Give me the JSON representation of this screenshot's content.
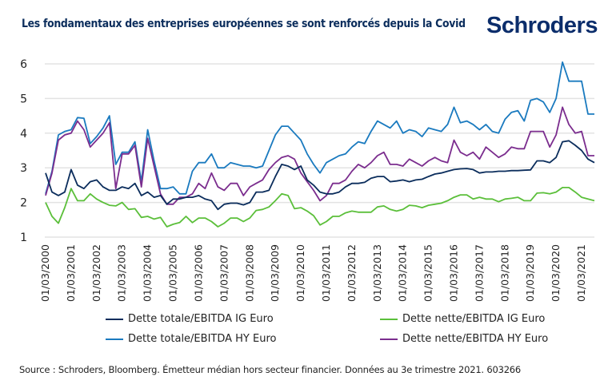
{
  "header": {
    "title": "Les fondamentaux des entreprises européennes se sont renforcés depuis la Covid",
    "logo": "Schroders"
  },
  "footer": {
    "source": "Source : Schroders, Bloomberg. Émetteur médian hors secteur financier. Données au 3e trimestre 2021. 603266"
  },
  "colors": {
    "title": "#0b2d5c",
    "logo": "#0b2d6b",
    "grid": "#e3e3e3"
  },
  "chart_data": {
    "type": "line",
    "title": "Les fondamentaux des entreprises européennes se sont renforcés depuis la Covid",
    "xlabel": "",
    "ylabel": "",
    "ylim": [
      1,
      6
    ],
    "yticks": [
      "1",
      "2",
      "3",
      "4",
      "5",
      "6"
    ],
    "grid": true,
    "legend_position": "bottom",
    "x_frequency": "quarterly",
    "x_start": "2000-03",
    "x_end": "2021-09",
    "xtick_labels": [
      "01/03/2000",
      "01/03/2001",
      "01/03/2002",
      "01/03/2003",
      "01/03/2004",
      "01/03/2005",
      "01/03/2006",
      "01/03/2007",
      "01/03/2008",
      "01/03/2009",
      "01/03/2010",
      "01/03/2011",
      "01/03/2012",
      "01/03/2013",
      "01/03/2014",
      "01/03/2015",
      "01/03/2016",
      "01/03/2017",
      "01/03/2018",
      "01/03/2019",
      "01/03/2020",
      "01/03/2021"
    ],
    "series": [
      {
        "name": "Dette totale/EBITDA HY Euro",
        "color": "#1a7abf",
        "values": [
          2.25,
          2.9,
          3.95,
          4.05,
          4.1,
          4.45,
          4.43,
          3.7,
          3.9,
          4.15,
          4.5,
          3.1,
          3.45,
          3.45,
          3.75,
          2.6,
          4.1,
          3.2,
          2.4,
          2.4,
          2.45,
          2.25,
          2.25,
          2.9,
          3.15,
          3.15,
          3.4,
          3.0,
          3.0,
          3.15,
          3.1,
          3.05,
          3.05,
          3.0,
          3.05,
          3.5,
          3.95,
          4.2,
          4.2,
          4.0,
          3.8,
          3.4,
          3.1,
          2.85,
          3.15,
          3.25,
          3.35,
          3.4,
          3.6,
          3.75,
          3.7,
          4.05,
          4.35,
          4.25,
          4.15,
          4.35,
          4.0,
          4.1,
          4.05,
          3.9,
          4.15,
          4.1,
          4.05,
          4.25,
          4.75,
          4.3,
          4.35,
          4.25,
          4.1,
          4.25,
          4.05,
          4.0,
          4.4,
          4.6,
          4.65,
          4.35,
          4.95,
          5.0,
          4.9,
          4.6,
          5.0,
          6.05,
          5.5,
          5.5,
          5.5,
          4.55,
          4.55
        ]
      },
      {
        "name": "Dette nette/EBITDA HY Euro",
        "color": "#7b2d8e",
        "values": [
          2.2,
          2.85,
          3.8,
          3.95,
          4.0,
          4.35,
          4.1,
          3.6,
          3.8,
          4.0,
          4.3,
          2.4,
          3.4,
          3.4,
          3.65,
          2.45,
          3.85,
          3.05,
          2.25,
          1.95,
          1.95,
          2.15,
          2.15,
          2.25,
          2.55,
          2.4,
          2.85,
          2.45,
          2.35,
          2.55,
          2.55,
          2.2,
          2.45,
          2.55,
          2.65,
          2.95,
          3.15,
          3.3,
          3.35,
          3.25,
          2.85,
          2.6,
          2.35,
          2.05,
          2.2,
          2.55,
          2.55,
          2.65,
          2.9,
          3.1,
          3.0,
          3.15,
          3.35,
          3.45,
          3.1,
          3.1,
          3.05,
          3.25,
          3.15,
          3.05,
          3.2,
          3.3,
          3.2,
          3.15,
          3.8,
          3.45,
          3.35,
          3.45,
          3.25,
          3.6,
          3.45,
          3.3,
          3.4,
          3.6,
          3.55,
          3.55,
          4.05,
          4.05,
          4.05,
          3.6,
          3.95,
          4.75,
          4.25,
          4.0,
          4.05,
          3.35,
          3.35
        ]
      },
      {
        "name": "Dette totale/EBITDA IG Euro",
        "color": "#0b2d5c",
        "values": [
          2.85,
          2.3,
          2.2,
          2.3,
          2.95,
          2.5,
          2.4,
          2.6,
          2.65,
          2.45,
          2.35,
          2.35,
          2.45,
          2.4,
          2.55,
          2.2,
          2.3,
          2.15,
          2.2,
          1.95,
          2.1,
          2.1,
          2.15,
          2.15,
          2.2,
          2.1,
          2.05,
          1.8,
          1.95,
          1.98,
          1.98,
          1.93,
          2.0,
          2.3,
          2.3,
          2.35,
          2.75,
          3.1,
          3.05,
          2.95,
          3.05,
          2.65,
          2.5,
          2.3,
          2.25,
          2.25,
          2.3,
          2.45,
          2.55,
          2.55,
          2.58,
          2.7,
          2.75,
          2.75,
          2.6,
          2.62,
          2.65,
          2.6,
          2.65,
          2.67,
          2.75,
          2.82,
          2.85,
          2.9,
          2.95,
          2.97,
          2.98,
          2.95,
          2.85,
          2.88,
          2.88,
          2.9,
          2.9,
          2.92,
          2.92,
          2.93,
          2.94,
          3.2,
          3.2,
          3.15,
          3.3,
          3.75,
          3.78,
          3.65,
          3.5,
          3.25,
          3.15
        ]
      },
      {
        "name": "Dette nette/EBITDA IG Euro",
        "color": "#5bbf3a",
        "values": [
          2.0,
          1.6,
          1.4,
          1.85,
          2.4,
          2.05,
          2.05,
          2.25,
          2.1,
          2.0,
          1.92,
          1.9,
          2.0,
          1.8,
          1.82,
          1.57,
          1.6,
          1.52,
          1.57,
          1.3,
          1.37,
          1.42,
          1.6,
          1.42,
          1.55,
          1.55,
          1.45,
          1.3,
          1.4,
          1.55,
          1.55,
          1.45,
          1.55,
          1.77,
          1.8,
          1.87,
          2.05,
          2.25,
          2.2,
          1.82,
          1.85,
          1.75,
          1.62,
          1.35,
          1.45,
          1.6,
          1.6,
          1.7,
          1.75,
          1.72,
          1.72,
          1.72,
          1.87,
          1.9,
          1.8,
          1.75,
          1.8,
          1.92,
          1.9,
          1.85,
          1.92,
          1.95,
          1.98,
          2.05,
          2.15,
          2.22,
          2.22,
          2.1,
          2.15,
          2.1,
          2.1,
          2.02,
          2.1,
          2.12,
          2.15,
          2.05,
          2.05,
          2.27,
          2.28,
          2.25,
          2.3,
          2.43,
          2.43,
          2.3,
          2.15,
          2.1,
          2.05
        ]
      }
    ],
    "legend": [
      {
        "label": "Dette totale/EBITDA IG Euro",
        "color": "#0b2d5c"
      },
      {
        "label": "Dette nette/EBITDA IG Euro",
        "color": "#5bbf3a"
      },
      {
        "label": "Dette totale/EBITDA HY Euro",
        "color": "#1a7abf"
      },
      {
        "label": "Dette nette/EBITDA HY Euro",
        "color": "#7b2d8e"
      }
    ]
  }
}
